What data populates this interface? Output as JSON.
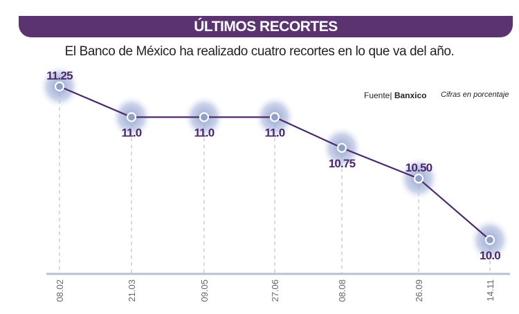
{
  "header": {
    "title": "ÚLTIMOS RECORTES",
    "subtitle": "El Banco de México ha realizado cuatro recortes en lo que va del año."
  },
  "source": {
    "label": "Fuente|",
    "name": "Banxico"
  },
  "unit_note": "Cifras en porcentaje",
  "colors": {
    "banner": "#5a3370",
    "line": "#4b2a6b",
    "point": "#8fa0c8",
    "glow": "#9aa9d3",
    "axis": "#b8c2cc"
  },
  "chart_data": {
    "type": "line",
    "title": "ÚLTIMOS RECORTES",
    "xlabel": "",
    "ylabel": "",
    "categories": [
      "08.02",
      "21.03",
      "09.05",
      "27.06",
      "08.08",
      "26.09",
      "14.11"
    ],
    "values": [
      11.25,
      11.0,
      11.0,
      11.0,
      10.75,
      10.5,
      10.0
    ],
    "data_labels": [
      "11.25",
      "11.0",
      "11.0",
      "11.0",
      "10.75",
      "10.50",
      "10.0"
    ],
    "grid": false
  }
}
